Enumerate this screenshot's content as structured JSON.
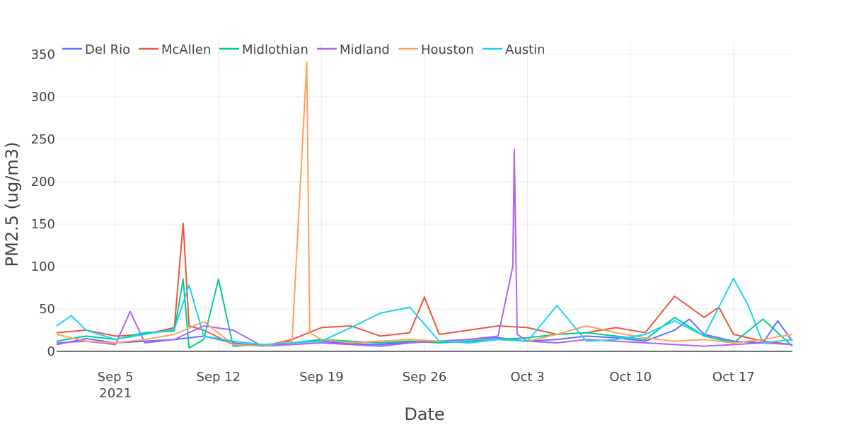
{
  "chart_data": {
    "type": "line",
    "title": "",
    "xlabel": "Date",
    "ylabel": "PM2.5 (ug/m3)",
    "x_start": "2021-09-01",
    "x_end": "2021-10-21",
    "xlim": [
      "2021-09-01",
      "2021-10-21"
    ],
    "ylim": [
      0,
      350
    ],
    "grid": true,
    "legend_position": "top-left",
    "x_ticks": [
      {
        "date": "2021-09-05",
        "label": "Sep 5",
        "sub": "2021"
      },
      {
        "date": "2021-09-12",
        "label": "Sep 12",
        "sub": ""
      },
      {
        "date": "2021-09-19",
        "label": "Sep 19",
        "sub": ""
      },
      {
        "date": "2021-09-26",
        "label": "Sep 26",
        "sub": ""
      },
      {
        "date": "2021-10-03",
        "label": "Oct 3",
        "sub": ""
      },
      {
        "date": "2021-10-10",
        "label": "Oct 10",
        "sub": ""
      },
      {
        "date": "2021-10-17",
        "label": "Oct 17",
        "sub": ""
      }
    ],
    "y_ticks": [
      0,
      50,
      100,
      150,
      200,
      250,
      300,
      350
    ],
    "series": [
      {
        "name": "Del Rio",
        "color": "#636efa",
        "points": [
          [
            "2021-09-01",
            8
          ],
          [
            "2021-09-03",
            15
          ],
          [
            "2021-09-05",
            10
          ],
          [
            "2021-09-07",
            12
          ],
          [
            "2021-09-09",
            14
          ],
          [
            "2021-09-11",
            18
          ],
          [
            "2021-09-13",
            10
          ],
          [
            "2021-09-15",
            6
          ],
          [
            "2021-09-17",
            10
          ],
          [
            "2021-09-19",
            12
          ],
          [
            "2021-09-21",
            9
          ],
          [
            "2021-09-23",
            8
          ],
          [
            "2021-09-25",
            11
          ],
          [
            "2021-09-27",
            12
          ],
          [
            "2021-09-29",
            14
          ],
          [
            "2021-10-01",
            16
          ],
          [
            "2021-10-03",
            12
          ],
          [
            "2021-10-05",
            14
          ],
          [
            "2021-10-07",
            18
          ],
          [
            "2021-10-09",
            16
          ],
          [
            "2021-10-11",
            12
          ],
          [
            "2021-10-13",
            25
          ],
          [
            "2021-10-14",
            38
          ],
          [
            "2021-10-15",
            20
          ],
          [
            "2021-10-17",
            12
          ],
          [
            "2021-10-19",
            10
          ],
          [
            "2021-10-20",
            36
          ],
          [
            "2021-10-21",
            12
          ]
        ]
      },
      {
        "name": "McAllen",
        "color": "#ef553b",
        "points": [
          [
            "2021-09-01",
            22
          ],
          [
            "2021-09-03",
            25
          ],
          [
            "2021-09-05",
            18
          ],
          [
            "2021-09-07",
            20
          ],
          [
            "2021-09-09",
            28
          ],
          [
            "2021-09-09.6",
            151
          ],
          [
            "2021-09-10",
            30
          ],
          [
            "2021-09-11",
            25
          ],
          [
            "2021-09-13",
            8
          ],
          [
            "2021-09-15",
            6
          ],
          [
            "2021-09-17",
            14
          ],
          [
            "2021-09-19",
            28
          ],
          [
            "2021-09-21",
            30
          ],
          [
            "2021-09-23",
            18
          ],
          [
            "2021-09-25",
            22
          ],
          [
            "2021-09-26",
            64
          ],
          [
            "2021-09-27",
            20
          ],
          [
            "2021-09-29",
            25
          ],
          [
            "2021-10-01",
            30
          ],
          [
            "2021-10-03",
            28
          ],
          [
            "2021-10-05",
            20
          ],
          [
            "2021-10-07",
            22
          ],
          [
            "2021-10-09",
            28
          ],
          [
            "2021-10-11",
            22
          ],
          [
            "2021-10-13",
            65
          ],
          [
            "2021-10-15",
            40
          ],
          [
            "2021-10-16",
            52
          ],
          [
            "2021-10-17",
            20
          ],
          [
            "2021-10-19",
            12
          ],
          [
            "2021-10-21",
            8
          ]
        ]
      },
      {
        "name": "Midlothian",
        "color": "#00cc96",
        "points": [
          [
            "2021-09-01",
            12
          ],
          [
            "2021-09-03",
            18
          ],
          [
            "2021-09-05",
            14
          ],
          [
            "2021-09-07",
            22
          ],
          [
            "2021-09-09",
            24
          ],
          [
            "2021-09-09.6",
            85
          ],
          [
            "2021-09-10",
            4
          ],
          [
            "2021-09-11",
            14
          ],
          [
            "2021-09-12",
            85
          ],
          [
            "2021-09-13",
            6
          ],
          [
            "2021-09-15",
            8
          ],
          [
            "2021-09-17",
            10
          ],
          [
            "2021-09-19",
            14
          ],
          [
            "2021-09-21",
            12
          ],
          [
            "2021-09-23",
            10
          ],
          [
            "2021-09-25",
            12
          ],
          [
            "2021-09-27",
            10
          ],
          [
            "2021-09-29",
            12
          ],
          [
            "2021-10-01",
            14
          ],
          [
            "2021-10-03",
            16
          ],
          [
            "2021-10-05",
            20
          ],
          [
            "2021-10-07",
            22
          ],
          [
            "2021-10-09",
            18
          ],
          [
            "2021-10-11",
            14
          ],
          [
            "2021-10-13",
            40
          ],
          [
            "2021-10-15",
            18
          ],
          [
            "2021-10-17",
            10
          ],
          [
            "2021-10-19",
            38
          ],
          [
            "2021-10-21",
            6
          ]
        ]
      },
      {
        "name": "Midland",
        "color": "#ab63fa",
        "points": [
          [
            "2021-09-01",
            10
          ],
          [
            "2021-09-03",
            12
          ],
          [
            "2021-09-05",
            8
          ],
          [
            "2021-09-06",
            47
          ],
          [
            "2021-09-07",
            10
          ],
          [
            "2021-09-09",
            14
          ],
          [
            "2021-09-11",
            30
          ],
          [
            "2021-09-13",
            25
          ],
          [
            "2021-09-15",
            6
          ],
          [
            "2021-09-17",
            8
          ],
          [
            "2021-09-19",
            10
          ],
          [
            "2021-09-21",
            8
          ],
          [
            "2021-09-23",
            6
          ],
          [
            "2021-09-25",
            10
          ],
          [
            "2021-09-27",
            12
          ],
          [
            "2021-09-29",
            14
          ],
          [
            "2021-10-01",
            18
          ],
          [
            "2021-10-02",
            100
          ],
          [
            "2021-10-02.1",
            238
          ],
          [
            "2021-10-02.3",
            20
          ],
          [
            "2021-10-03",
            12
          ],
          [
            "2021-10-05",
            10
          ],
          [
            "2021-10-07",
            14
          ],
          [
            "2021-10-09",
            12
          ],
          [
            "2021-10-11",
            10
          ],
          [
            "2021-10-13",
            8
          ],
          [
            "2021-10-15",
            6
          ],
          [
            "2021-10-17",
            8
          ],
          [
            "2021-10-19",
            10
          ],
          [
            "2021-10-21",
            8
          ]
        ]
      },
      {
        "name": "Houston",
        "color": "#ffa15a",
        "points": [
          [
            "2021-09-01",
            20
          ],
          [
            "2021-09-03",
            12
          ],
          [
            "2021-09-05",
            10
          ],
          [
            "2021-09-07",
            14
          ],
          [
            "2021-09-09",
            20
          ],
          [
            "2021-09-11",
            35
          ],
          [
            "2021-09-13",
            8
          ],
          [
            "2021-09-15",
            6
          ],
          [
            "2021-09-17",
            12
          ],
          [
            "2021-09-18",
            341
          ],
          [
            "2021-09-18.2",
            22
          ],
          [
            "2021-09-19",
            14
          ],
          [
            "2021-09-21",
            10
          ],
          [
            "2021-09-23",
            12
          ],
          [
            "2021-09-25",
            14
          ],
          [
            "2021-09-27",
            12
          ],
          [
            "2021-09-29",
            10
          ],
          [
            "2021-10-01",
            14
          ],
          [
            "2021-10-03",
            12
          ],
          [
            "2021-10-05",
            20
          ],
          [
            "2021-10-07",
            30
          ],
          [
            "2021-10-09",
            22
          ],
          [
            "2021-10-11",
            16
          ],
          [
            "2021-10-13",
            12
          ],
          [
            "2021-10-15",
            14
          ],
          [
            "2021-10-17",
            10
          ],
          [
            "2021-10-19",
            14
          ],
          [
            "2021-10-21",
            20
          ]
        ]
      },
      {
        "name": "Austin",
        "color": "#19d3f3",
        "points": [
          [
            "2021-09-01",
            30
          ],
          [
            "2021-09-02",
            42
          ],
          [
            "2021-09-03",
            25
          ],
          [
            "2021-09-05",
            14
          ],
          [
            "2021-09-07",
            20
          ],
          [
            "2021-09-09",
            26
          ],
          [
            "2021-09-10",
            78
          ],
          [
            "2021-09-11",
            18
          ],
          [
            "2021-09-13",
            12
          ],
          [
            "2021-09-15",
            8
          ],
          [
            "2021-09-17",
            10
          ],
          [
            "2021-09-19",
            12
          ],
          [
            "2021-09-21",
            28
          ],
          [
            "2021-09-23",
            45
          ],
          [
            "2021-09-25",
            52
          ],
          [
            "2021-09-27",
            12
          ],
          [
            "2021-09-29",
            10
          ],
          [
            "2021-10-01",
            14
          ],
          [
            "2021-10-03",
            12
          ],
          [
            "2021-10-05",
            54
          ],
          [
            "2021-10-07",
            12
          ],
          [
            "2021-10-09",
            14
          ],
          [
            "2021-10-11",
            20
          ],
          [
            "2021-10-13",
            36
          ],
          [
            "2021-10-15",
            18
          ],
          [
            "2021-10-17",
            86
          ],
          [
            "2021-10-18",
            54
          ],
          [
            "2021-10-19",
            10
          ],
          [
            "2021-10-21",
            14
          ]
        ]
      }
    ]
  }
}
